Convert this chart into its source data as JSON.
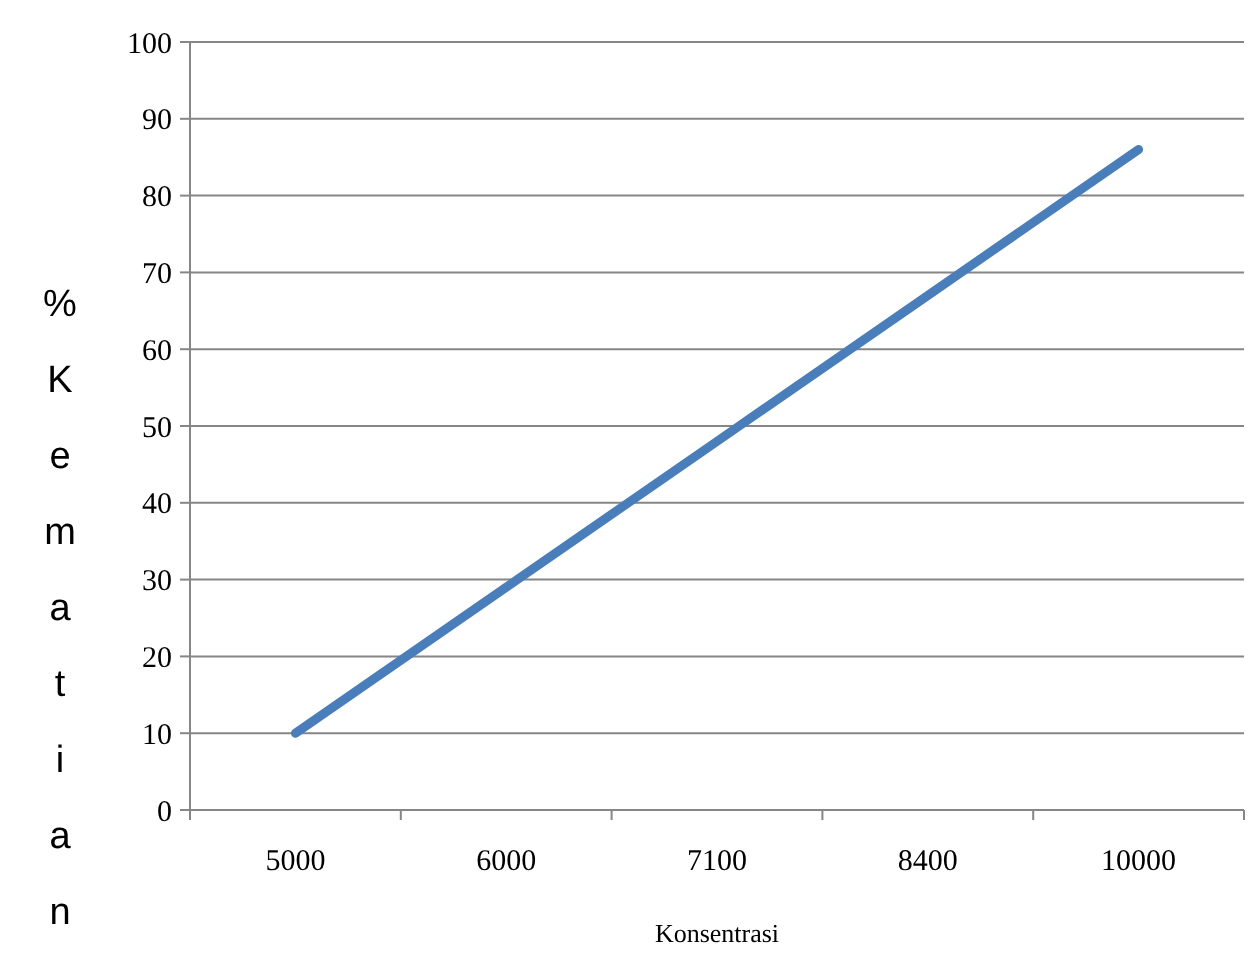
{
  "chart_data": {
    "type": "line",
    "xlabel": "Konsentrasi",
    "ylabel": "% Kematian",
    "categories": [
      "5000",
      "6000",
      "7100",
      "8400",
      "10000"
    ],
    "series": [
      {
        "color": "#4a7ebb",
        "values": [
          10,
          29,
          48,
          67,
          86
        ]
      }
    ],
    "ylim": [
      0,
      100
    ],
    "yticks": [
      0,
      10,
      20,
      30,
      40,
      50,
      60,
      70,
      80,
      90,
      100
    ],
    "grid": "y",
    "marker": "none",
    "line_style": "solid"
  }
}
